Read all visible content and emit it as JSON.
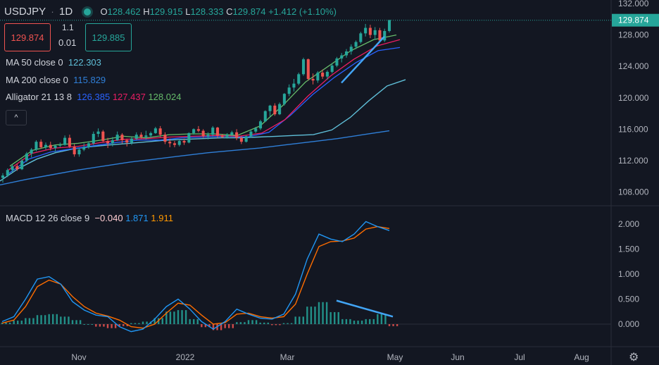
{
  "header": {
    "symbol": "USDJPY",
    "interval": "1D",
    "open_label": "O",
    "open": "128.462",
    "high_label": "H",
    "high": "129.915",
    "low_label": "L",
    "low": "128.333",
    "close_label": "C",
    "close": "129.874",
    "change": "+1.412 (+1.10%)"
  },
  "trade": {
    "sell_price": "129.874",
    "qty_top": "1.1",
    "qty_bottom": "0.01",
    "buy_price": "129.885"
  },
  "indicators": {
    "ma50_label": "MA 50 close 0",
    "ma50_value": "122.303",
    "ma200_label": "MA 200 close 0",
    "ma200_value": "115.829",
    "alligator_label": "Alligator 21 13 8",
    "alligator_jaw": "126.385",
    "alligator_teeth": "127.437",
    "alligator_lips": "128.024",
    "macd_label": "MACD 12 26 close 9",
    "macd_hist": "−0.040",
    "macd_line": "1.871",
    "macd_signal": "1.911"
  },
  "colors": {
    "background": "#131722",
    "up": "#26a69a",
    "down": "#ef5350",
    "ma50": "#5fbfd8",
    "ma200": "#2f7fd8",
    "jaw": "#2962ff",
    "teeth": "#e91e63",
    "lips": "#66bb6a",
    "macd": "#2196f3",
    "signal": "#ff6d00",
    "trendline": "#42a5f5"
  },
  "chart_data": [
    {
      "type": "candlestick",
      "title": "USDJPY · 1D",
      "x_ticks": [
        "Nov",
        "2022",
        "Mar",
        "May",
        "Jun",
        "Jul",
        "Aug"
      ],
      "y_ticks": [
        "108.000",
        "112.000",
        "116.000",
        "120.000",
        "124.000",
        "128.000",
        "132.000"
      ],
      "ylim": [
        106.9,
        132.6
      ],
      "last_price_label": "129.874",
      "ohlc": [
        [
          109.8,
          110.4,
          109.2,
          110.1
        ],
        [
          110.1,
          111.0,
          109.9,
          110.8
        ],
        [
          110.8,
          111.5,
          110.5,
          111.3
        ],
        [
          111.3,
          111.6,
          110.7,
          110.9
        ],
        [
          110.9,
          112.2,
          110.8,
          112.0
        ],
        [
          112.0,
          113.1,
          111.8,
          112.9
        ],
        [
          112.9,
          113.6,
          112.4,
          113.4
        ],
        [
          113.4,
          114.6,
          113.2,
          114.4
        ],
        [
          114.4,
          114.7,
          113.5,
          113.7
        ],
        [
          113.7,
          114.3,
          113.4,
          114.0
        ],
        [
          114.0,
          114.4,
          113.3,
          113.6
        ],
        [
          113.6,
          114.0,
          113.1,
          113.9
        ],
        [
          113.9,
          114.3,
          113.7,
          114.0
        ],
        [
          114.0,
          115.2,
          113.9,
          114.9
        ],
        [
          114.9,
          115.3,
          113.6,
          113.8
        ],
        [
          113.8,
          114.1,
          112.5,
          112.8
        ],
        [
          112.8,
          113.6,
          112.5,
          113.4
        ],
        [
          113.4,
          114.2,
          113.2,
          113.7
        ],
        [
          113.7,
          114.4,
          113.5,
          114.2
        ],
        [
          114.2,
          115.7,
          114.0,
          115.4
        ],
        [
          115.4,
          116.1,
          115.0,
          115.7
        ],
        [
          115.7,
          115.9,
          114.3,
          114.5
        ],
        [
          114.5,
          114.9,
          113.6,
          114.2
        ],
        [
          114.2,
          115.0,
          113.8,
          114.6
        ],
        [
          114.6,
          115.7,
          114.5,
          115.3
        ],
        [
          115.3,
          115.5,
          114.2,
          114.6
        ],
        [
          114.6,
          114.8,
          113.8,
          114.3
        ],
        [
          114.3,
          115.0,
          114.0,
          114.8
        ],
        [
          114.8,
          115.6,
          114.6,
          115.3
        ],
        [
          115.3,
          115.6,
          114.8,
          115.0
        ],
        [
          115.0,
          115.8,
          114.7,
          115.2
        ],
        [
          115.2,
          115.7,
          114.9,
          115.5
        ],
        [
          115.5,
          116.3,
          115.4,
          116.1
        ],
        [
          116.1,
          116.4,
          115.0,
          115.3
        ],
        [
          115.3,
          115.6,
          114.1,
          114.4
        ],
        [
          114.4,
          114.8,
          113.7,
          114.2
        ],
        [
          114.2,
          114.5,
          113.7,
          114.0
        ],
        [
          114.0,
          114.6,
          113.8,
          114.5
        ],
        [
          114.5,
          114.8,
          114.0,
          114.3
        ],
        [
          114.3,
          115.6,
          114.2,
          115.5
        ],
        [
          115.5,
          116.1,
          115.3,
          116.0
        ],
        [
          116.0,
          116.4,
          115.6,
          115.8
        ],
        [
          115.8,
          116.0,
          114.9,
          115.1
        ],
        [
          115.1,
          115.6,
          114.7,
          115.3
        ],
        [
          115.3,
          116.4,
          115.1,
          116.2
        ],
        [
          116.2,
          116.3,
          114.9,
          115.2
        ],
        [
          115.2,
          115.4,
          114.9,
          115.0
        ],
        [
          115.0,
          115.5,
          114.8,
          115.3
        ],
        [
          115.3,
          115.8,
          115.1,
          115.6
        ],
        [
          115.6,
          116.0,
          114.6,
          114.9
        ],
        [
          114.9,
          115.1,
          114.1,
          114.4
        ],
        [
          114.4,
          115.2,
          114.3,
          115.1
        ],
        [
          115.1,
          115.9,
          114.9,
          115.7
        ],
        [
          115.7,
          116.3,
          115.5,
          116.1
        ],
        [
          116.1,
          117.2,
          115.9,
          117.0
        ],
        [
          117.0,
          118.4,
          116.9,
          118.3
        ],
        [
          118.3,
          119.1,
          117.6,
          119.0
        ],
        [
          119.0,
          119.3,
          117.7,
          117.9
        ],
        [
          117.9,
          119.4,
          117.8,
          119.2
        ],
        [
          119.2,
          120.6,
          119.0,
          120.5
        ],
        [
          120.5,
          121.7,
          120.2,
          121.3
        ],
        [
          121.3,
          122.4,
          120.8,
          121.8
        ],
        [
          121.8,
          123.2,
          121.6,
          123.0
        ],
        [
          123.0,
          125.1,
          122.8,
          124.9
        ],
        [
          124.9,
          125.0,
          122.2,
          122.4
        ],
        [
          122.4,
          123.1,
          121.7,
          122.2
        ],
        [
          122.2,
          123.4,
          121.9,
          123.2
        ],
        [
          123.2,
          123.6,
          122.4,
          122.7
        ],
        [
          122.7,
          123.5,
          122.3,
          123.3
        ],
        [
          123.3,
          124.4,
          123.1,
          124.1
        ],
        [
          124.1,
          125.2,
          123.9,
          125.0
        ],
        [
          125.0,
          125.7,
          124.5,
          125.4
        ],
        [
          125.4,
          126.2,
          125.1,
          125.9
        ],
        [
          125.9,
          126.8,
          125.5,
          126.5
        ],
        [
          126.5,
          127.3,
          126.2,
          127.1
        ],
        [
          127.1,
          128.4,
          126.9,
          128.2
        ],
        [
          128.2,
          129.4,
          127.8,
          128.9
        ],
        [
          128.9,
          129.3,
          127.6,
          128.0
        ],
        [
          128.0,
          129.0,
          127.4,
          128.6
        ],
        [
          128.6,
          128.9,
          127.1,
          127.3
        ],
        [
          127.3,
          128.8,
          127.1,
          128.5
        ],
        [
          128.5,
          129.9,
          128.3,
          129.9
        ]
      ],
      "ma50": [
        109.4,
        111.0,
        112.2,
        113.0,
        113.5,
        113.8,
        114.0,
        114.2,
        114.4,
        114.6,
        114.7,
        114.8,
        114.9,
        114.9,
        115.0,
        115.1,
        115.2,
        115.3,
        115.9,
        117.5,
        119.6,
        121.5,
        122.3
      ],
      "ma200": [
        108.9,
        109.6,
        110.2,
        110.8,
        111.3,
        111.8,
        112.2,
        112.6,
        113.0,
        113.3,
        113.6,
        114.0,
        114.4,
        114.8,
        115.3,
        115.8
      ],
      "alligator_jaw": [
        110.2,
        112.2,
        113.1,
        113.5,
        113.9,
        114.3,
        114.6,
        114.6,
        114.9,
        115.0,
        115.1,
        115.0,
        115.6,
        117.8,
        120.4,
        122.6,
        124.5,
        126.0,
        126.4
      ],
      "alligator_teeth": [
        110.8,
        112.9,
        113.6,
        113.8,
        114.3,
        114.7,
        114.8,
        115.0,
        115.1,
        115.2,
        115.1,
        115.5,
        117.2,
        120.2,
        122.8,
        124.9,
        126.6,
        127.4
      ],
      "alligator_lips": [
        111.3,
        113.3,
        114.0,
        114.2,
        114.6,
        115.1,
        114.9,
        115.3,
        115.4,
        115.4,
        115.2,
        116.4,
        119.0,
        122.0,
        124.0,
        126.0,
        127.4,
        128.0
      ],
      "trendline": [
        121.9,
        127.8
      ]
    },
    {
      "type": "macd",
      "title": "MACD 12 26 close 9",
      "y_ticks": [
        "0.000",
        "0.500",
        "1.000",
        "1.500",
        "2.000"
      ],
      "ylim": [
        -0.25,
        2.25
      ],
      "macd": [
        0.05,
        0.15,
        0.5,
        0.9,
        0.95,
        0.8,
        0.45,
        0.28,
        0.18,
        0.15,
        -0.05,
        -0.15,
        -0.1,
        0.1,
        0.35,
        0.5,
        0.3,
        0.05,
        -0.1,
        0.05,
        0.3,
        0.2,
        0.12,
        0.1,
        0.2,
        0.6,
        1.3,
        1.8,
        1.7,
        1.65,
        1.8,
        2.05,
        1.95,
        1.871
      ],
      "signal": [
        0.02,
        0.08,
        0.35,
        0.75,
        0.88,
        0.8,
        0.55,
        0.35,
        0.22,
        0.16,
        0.08,
        -0.05,
        -0.08,
        0.0,
        0.22,
        0.42,
        0.38,
        0.18,
        0.0,
        0.03,
        0.2,
        0.22,
        0.15,
        0.12,
        0.15,
        0.4,
        1.0,
        1.55,
        1.65,
        1.66,
        1.72,
        1.9,
        1.95,
        1.911
      ],
      "histogram": [
        0.03,
        0.07,
        0.12,
        0.18,
        0.2,
        0.15,
        0.08,
        0.0,
        -0.05,
        -0.08,
        -0.04,
        0.02,
        0.05,
        0.12,
        0.25,
        0.28,
        0.1,
        -0.06,
        -0.12,
        -0.08,
        0.04,
        0.08,
        0.03,
        -0.02,
        0.02,
        0.15,
        0.35,
        0.44,
        0.24,
        0.1,
        0.07,
        0.1,
        0.2,
        -0.04
      ],
      "trendline": [
        0.47,
        0.15
      ]
    }
  ]
}
